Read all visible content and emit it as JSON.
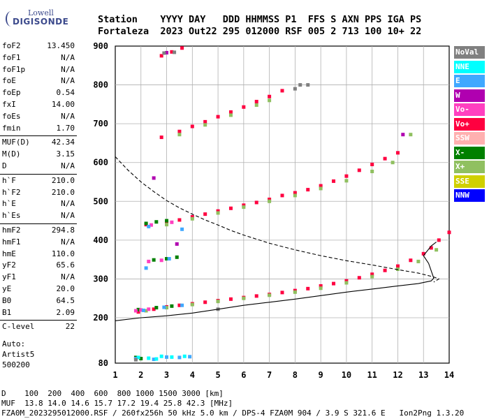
{
  "logo": {
    "brand_top": "Lowell",
    "brand_main": "DIGISONDE"
  },
  "header": {
    "line1": "Station    YYYY DAY   DDD HHMMSS P1  FFS S AXN PPS IGA PS",
    "line2": "Fortaleza  2023 Out22 295 012000 RSF 005 2 713 100 10+ 22"
  },
  "params": [
    {
      "label": "foF2",
      "value": "13.450"
    },
    {
      "label": "foF1",
      "value": "N/A"
    },
    {
      "label": "foF1p",
      "value": "N/A"
    },
    {
      "label": "foE",
      "value": "N/A"
    },
    {
      "label": "foEp",
      "value": "0.54"
    },
    {
      "label": "fxI",
      "value": "14.00"
    },
    {
      "label": "foEs",
      "value": "N/A"
    },
    {
      "label": "fmin",
      "value": "1.70"
    },
    {
      "label": "MUF(D)",
      "value": "42.34"
    },
    {
      "label": "M(D)",
      "value": "3.15"
    },
    {
      "label": "D",
      "value": "N/A"
    },
    {
      "label": "h`F",
      "value": "210.0"
    },
    {
      "label": "h`F2",
      "value": "210.0"
    },
    {
      "label": "h`E",
      "value": "N/A"
    },
    {
      "label": "h`Es",
      "value": "N/A"
    },
    {
      "label": "hmF2",
      "value": "294.8"
    },
    {
      "label": "hmF1",
      "value": "N/A"
    },
    {
      "label": "hmE",
      "value": "110.0"
    },
    {
      "label": "yF2",
      "value": "65.6"
    },
    {
      "label": "yF1",
      "value": "N/A"
    },
    {
      "label": "yE",
      "value": "20.0"
    },
    {
      "label": "B0",
      "value": "64.5"
    },
    {
      "label": "B1",
      "value": "2.09"
    },
    {
      "label": "C-level",
      "value": "22"
    }
  ],
  "auto": {
    "line1": "Auto:",
    "line2": "Artist5",
    "line3": "500200"
  },
  "legend": [
    {
      "label": "NoVal",
      "color": "#808080"
    },
    {
      "label": "NNE",
      "color": "#00ffff"
    },
    {
      "label": "E",
      "color": "#40a8ff"
    },
    {
      "label": "W",
      "color": "#b000b0"
    },
    {
      "label": "Vo-",
      "color": "#ff40c0"
    },
    {
      "label": "Vo+",
      "color": "#ff0040"
    },
    {
      "label": "SSW",
      "color": "#ffb0b0"
    },
    {
      "label": "X-",
      "color": "#008000"
    },
    {
      "label": "X+",
      "color": "#90c060"
    },
    {
      "label": "SSE",
      "color": "#d0d000"
    },
    {
      "label": "NNW",
      "color": "#0000ff"
    }
  ],
  "bottom": {
    "line1": "D    100  200  400  600  800 1000 1500 3000 [km]",
    "line2": "MUF  13.8 14.0 14.6 15.7 17.2 19.4 25.8 42.3 [MHz]",
    "line3": "FZA0M_2023295012000.RSF / 260fx256h 50 kHz 5.0 km / DPS-4 FZA0M 904 / 3.9 S 321.6 E   Ion2Png 1.3.20"
  },
  "chart_data": {
    "type": "scatter",
    "x_ticks": [
      1,
      2,
      3,
      4,
      5,
      6,
      7,
      8,
      9,
      10,
      11,
      12,
      13,
      14
    ],
    "y_ticks": [
      80,
      200,
      300,
      400,
      500,
      600,
      700,
      800,
      900
    ],
    "xlim": [
      1,
      14
    ],
    "ylim": [
      80,
      900
    ],
    "grid": true,
    "legend_position": "right",
    "series": [
      {
        "name": "Vo+",
        "points": [
          [
            1.9,
            215
          ],
          [
            2.5,
            222
          ],
          [
            3,
            228
          ],
          [
            3.5,
            232
          ],
          [
            4,
            236
          ],
          [
            4.5,
            240
          ],
          [
            5,
            244
          ],
          [
            5.5,
            248
          ],
          [
            6,
            252
          ],
          [
            6.5,
            256
          ],
          [
            7,
            260
          ],
          [
            7.5,
            265
          ],
          [
            8,
            270
          ],
          [
            8.5,
            275
          ],
          [
            9,
            282
          ],
          [
            9.5,
            288
          ],
          [
            10,
            295
          ],
          [
            10.5,
            303
          ],
          [
            11,
            312
          ],
          [
            11.5,
            322
          ],
          [
            12,
            333
          ],
          [
            12.5,
            348
          ],
          [
            13,
            365
          ],
          [
            13.3,
            380
          ],
          [
            13.6,
            400
          ],
          [
            14,
            420
          ],
          [
            2.2,
            440
          ],
          [
            3,
            445
          ],
          [
            3.5,
            452
          ],
          [
            4,
            460
          ],
          [
            4.5,
            467
          ],
          [
            5,
            475
          ],
          [
            5.5,
            482
          ],
          [
            6,
            490
          ],
          [
            6.5,
            497
          ],
          [
            7,
            505
          ],
          [
            7.5,
            515
          ],
          [
            8,
            522
          ],
          [
            8.5,
            530
          ],
          [
            9,
            540
          ],
          [
            9.5,
            552
          ],
          [
            10,
            565
          ],
          [
            10.5,
            580
          ],
          [
            11,
            595
          ],
          [
            11.5,
            610
          ],
          [
            12,
            625
          ],
          [
            2.8,
            665
          ],
          [
            3.5,
            680
          ],
          [
            4,
            693
          ],
          [
            4.5,
            705
          ],
          [
            5,
            718
          ],
          [
            5.5,
            730
          ],
          [
            6,
            743
          ],
          [
            6.5,
            757
          ],
          [
            7,
            770
          ],
          [
            7.5,
            785
          ],
          [
            2.8,
            875
          ],
          [
            3.2,
            885
          ],
          [
            3.6,
            895
          ]
        ]
      },
      {
        "name": "X+",
        "points": [
          [
            2.2,
            218
          ],
          [
            3,
            226
          ],
          [
            4,
            234
          ],
          [
            5,
            242
          ],
          [
            6,
            250
          ],
          [
            7,
            258
          ],
          [
            8,
            266
          ],
          [
            9,
            276
          ],
          [
            10,
            290
          ],
          [
            11,
            306
          ],
          [
            12,
            325
          ],
          [
            12.8,
            345
          ],
          [
            13.5,
            375
          ],
          [
            3,
            440
          ],
          [
            4,
            455
          ],
          [
            5,
            470
          ],
          [
            6,
            485
          ],
          [
            7,
            500
          ],
          [
            8,
            515
          ],
          [
            9,
            533
          ],
          [
            10,
            553
          ],
          [
            11,
            577
          ],
          [
            11.8,
            600
          ],
          [
            3.5,
            672
          ],
          [
            4.5,
            697
          ],
          [
            5.5,
            722
          ],
          [
            6.5,
            748
          ],
          [
            7,
            760
          ],
          [
            12.5,
            672
          ]
        ]
      },
      {
        "name": "X-",
        "points": [
          [
            1.9,
            221
          ],
          [
            2.6,
            226
          ],
          [
            3.2,
            230
          ],
          [
            2.2,
            443
          ],
          [
            2.6,
            447
          ],
          [
            3,
            450
          ],
          [
            2.5,
            349
          ],
          [
            3,
            352
          ],
          [
            3.4,
            356
          ],
          [
            1.8,
            95
          ],
          [
            2,
            92
          ]
        ]
      },
      {
        "name": "Vo-",
        "points": [
          [
            1.8,
            218
          ],
          [
            2,
            220
          ],
          [
            2.3,
            222
          ],
          [
            2.4,
            439
          ],
          [
            3.2,
            446
          ],
          [
            2.3,
            345
          ],
          [
            2.8,
            348
          ]
        ]
      },
      {
        "name": "E",
        "points": [
          [
            2.1,
            219
          ],
          [
            2.9,
            227
          ],
          [
            3.6,
            232
          ],
          [
            2.3,
            435
          ],
          [
            3.6,
            428
          ],
          [
            1.8,
            92
          ],
          [
            2.5,
            90
          ],
          [
            3,
            96
          ],
          [
            3.5,
            95
          ],
          [
            3.9,
            97
          ],
          [
            2.2,
            328
          ],
          [
            3.1,
            352
          ]
        ]
      },
      {
        "name": "NNE",
        "points": [
          [
            1.9,
            95
          ],
          [
            2.3,
            93
          ],
          [
            2.8,
            98
          ],
          [
            3.2,
            96
          ],
          [
            3.7,
            98
          ],
          [
            2.6,
            91
          ]
        ]
      },
      {
        "name": "W",
        "points": [
          [
            3.4,
            390
          ],
          [
            3,
            883
          ],
          [
            2.5,
            560
          ],
          [
            12.2,
            672
          ]
        ]
      },
      {
        "name": "NoVal",
        "points": [
          [
            1.8,
            89
          ],
          [
            2.9,
            882
          ],
          [
            3.3,
            884
          ],
          [
            5,
            222
          ],
          [
            8,
            790
          ],
          [
            8.2,
            800
          ],
          [
            8.5,
            800
          ]
        ]
      }
    ],
    "lines": [
      {
        "name": "profile_solid",
        "points": [
          [
            1,
            192
          ],
          [
            2,
            200
          ],
          [
            3,
            205
          ],
          [
            4,
            212
          ],
          [
            5,
            222
          ],
          [
            6,
            232
          ],
          [
            7,
            240
          ],
          [
            8,
            248
          ],
          [
            9,
            257
          ],
          [
            10,
            266
          ],
          [
            11,
            274
          ],
          [
            12,
            282
          ],
          [
            12.8,
            288
          ],
          [
            13.3,
            295
          ],
          [
            13.4,
            302
          ],
          [
            13.2,
            340
          ],
          [
            13.0,
            360
          ],
          [
            13.3,
            385
          ],
          [
            13.5,
            395
          ]
        ]
      },
      {
        "name": "profile_dashed",
        "points": [
          [
            1,
            615
          ],
          [
            1.5,
            580
          ],
          [
            2,
            550
          ],
          [
            2.5,
            525
          ],
          [
            3,
            502
          ],
          [
            3.5,
            483
          ],
          [
            4,
            467
          ],
          [
            4.5,
            452
          ],
          [
            5,
            439
          ],
          [
            5.5,
            425
          ],
          [
            6,
            413
          ],
          [
            7,
            392
          ],
          [
            8,
            375
          ],
          [
            9,
            360
          ],
          [
            10,
            347
          ],
          [
            11,
            336
          ],
          [
            12,
            324
          ],
          [
            12.8,
            315
          ],
          [
            13.4,
            305
          ],
          [
            13.6,
            300
          ],
          [
            13.4,
            292
          ]
        ]
      }
    ]
  }
}
